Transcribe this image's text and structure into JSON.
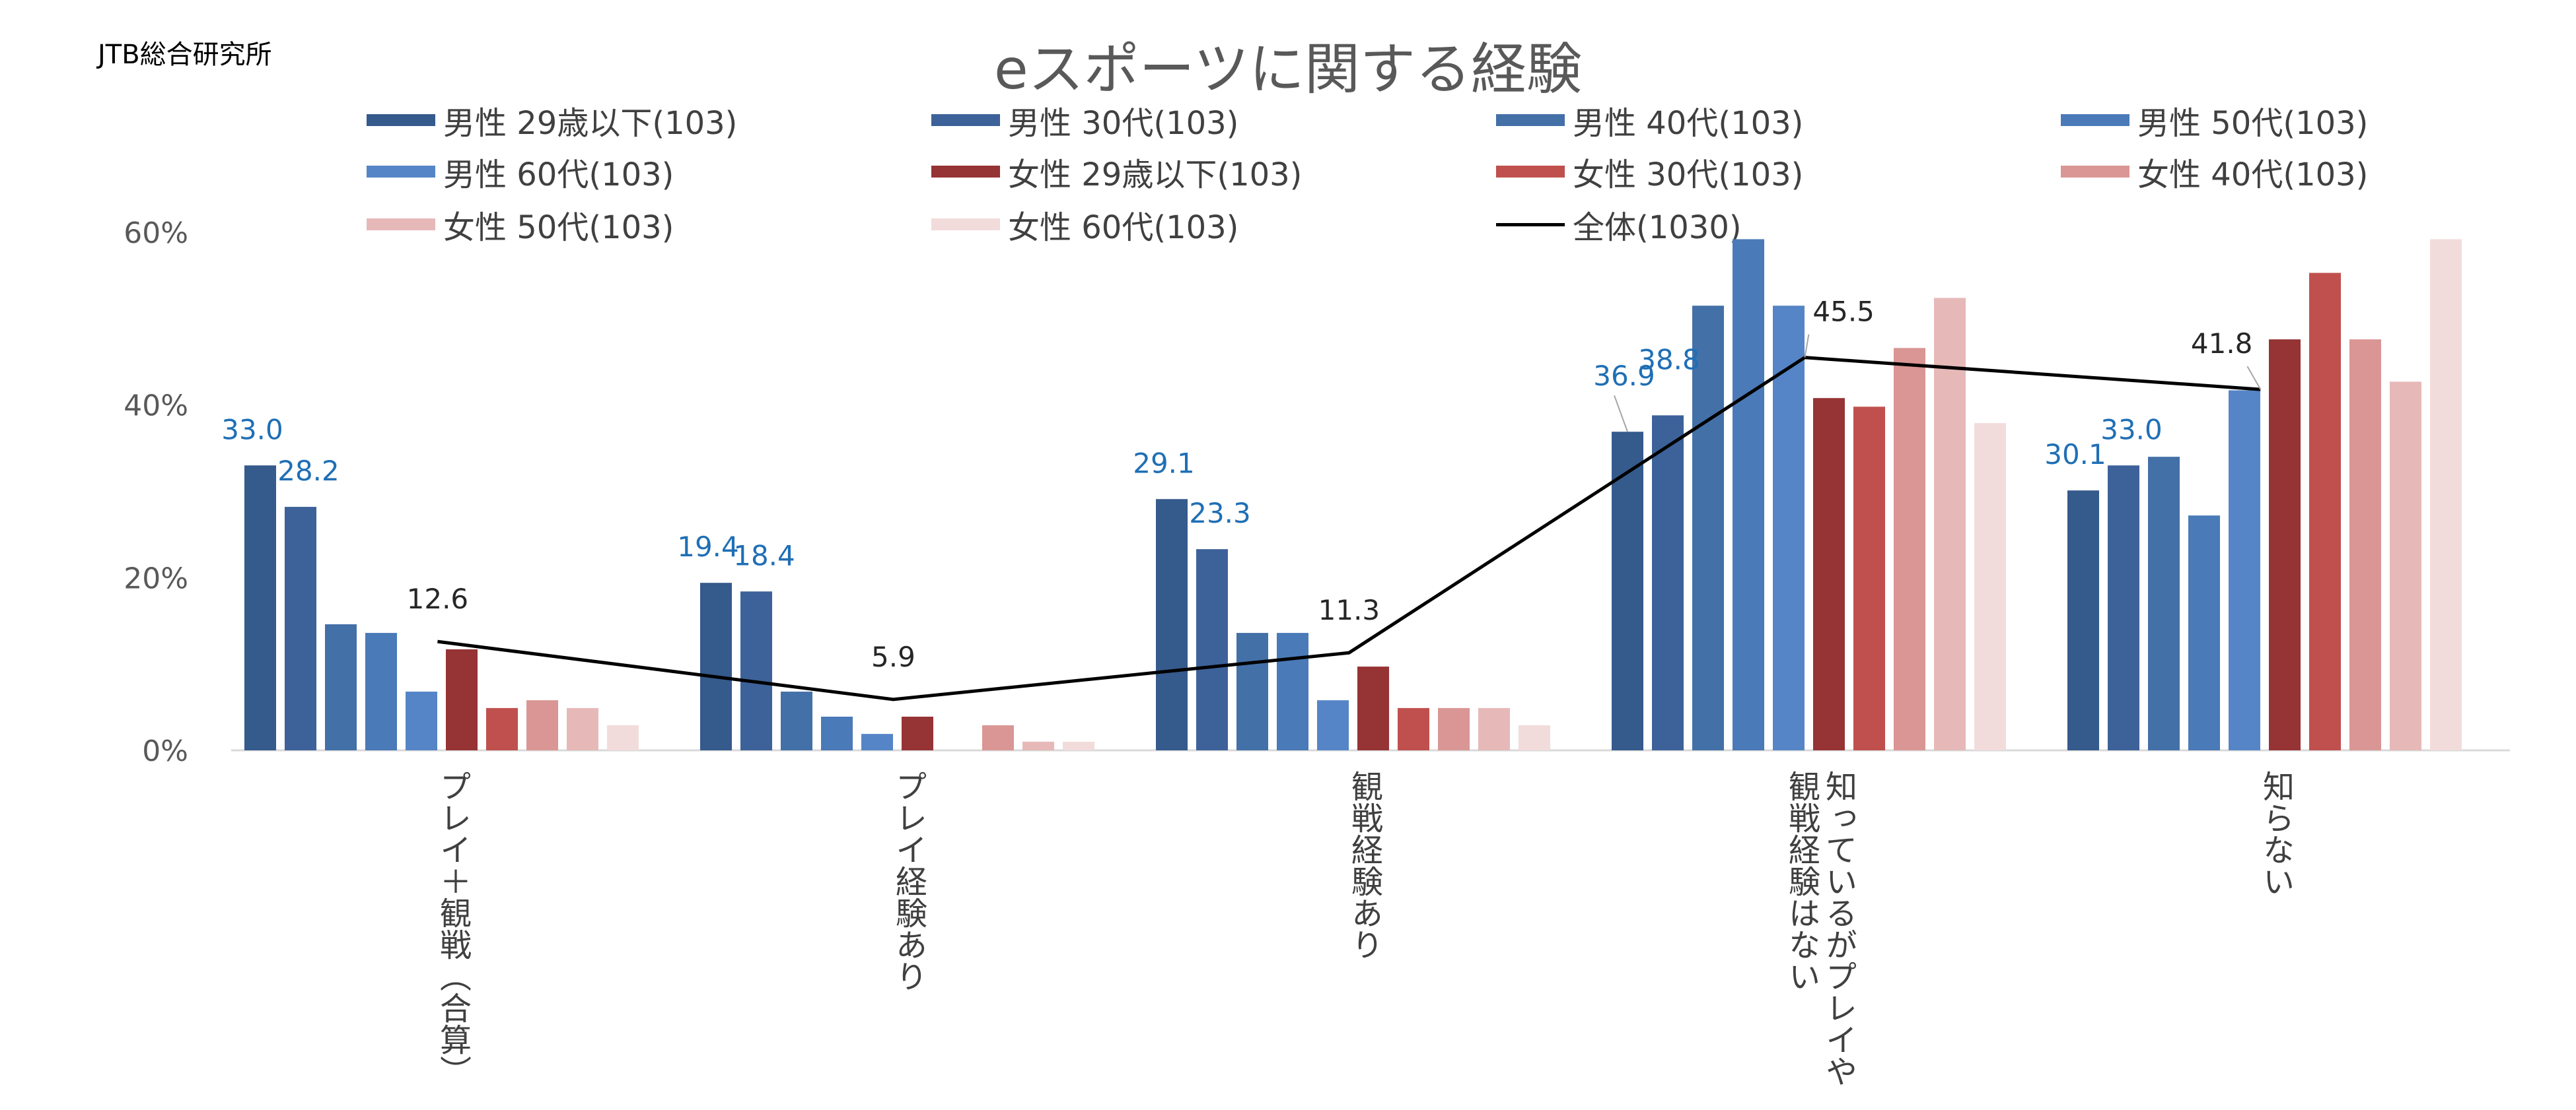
{
  "source": "JTB総合研究所",
  "chart_data": {
    "type": "bar",
    "title": "eスポーツに関する経験",
    "categories": [
      "プレイ＋観戦（合算）",
      "プレイ経験あり",
      "観戦経験あり",
      "知っているがプレイや観戦経験はない",
      "知らない"
    ],
    "category_lines": [
      [
        "プレイ＋観戦（合算）"
      ],
      [
        "プレイ経験あり"
      ],
      [
        "観戦経験あり"
      ],
      [
        "知っているがプレイや",
        "観戦経験はない"
      ],
      [
        "知らない"
      ]
    ],
    "y_ticks": [
      "0%",
      "20%",
      "40%",
      "60%"
    ],
    "ylim": [
      0,
      60
    ],
    "grid": false,
    "series": [
      {
        "name": "男性 29歳以下(103)",
        "color": "#355a8c",
        "values": [
          33.0,
          19.4,
          29.1,
          36.9,
          30.1
        ]
      },
      {
        "name": "男性 30代(103)",
        "color": "#3c6299",
        "values": [
          28.2,
          18.4,
          23.3,
          38.8,
          33.0
        ]
      },
      {
        "name": "男性 40代(103)",
        "color": "#4470a8",
        "values": [
          14.6,
          6.8,
          13.6,
          51.5,
          34.0
        ]
      },
      {
        "name": "男性 50代(103)",
        "color": "#4a7ab8",
        "values": [
          13.6,
          3.9,
          13.6,
          59.2,
          27.2
        ]
      },
      {
        "name": "男性 60代(103)",
        "color": "#5585c6",
        "values": [
          6.8,
          1.9,
          5.8,
          51.5,
          41.7
        ]
      },
      {
        "name": "女性 29歳以下(103)",
        "color": "#963334",
        "values": [
          11.7,
          3.9,
          9.7,
          40.8,
          47.6
        ]
      },
      {
        "name": "女性 30代(103)",
        "color": "#c0504d",
        "values": [
          4.9,
          0.0,
          4.9,
          39.8,
          55.3
        ]
      },
      {
        "name": "女性 40代(103)",
        "color": "#d99694",
        "values": [
          5.8,
          2.9,
          4.9,
          46.6,
          47.6
        ]
      },
      {
        "name": "女性 50代(103)",
        "color": "#e6b9b8",
        "values": [
          4.9,
          1.0,
          4.9,
          52.4,
          42.7
        ]
      },
      {
        "name": "女性 60代(103)",
        "color": "#f2dcdb",
        "values": [
          2.9,
          1.0,
          2.9,
          37.9,
          59.2
        ]
      }
    ],
    "line_series": {
      "name": "全体(1030)",
      "color": "#000000",
      "values": [
        12.6,
        5.9,
        11.3,
        45.5,
        41.8
      ]
    },
    "data_labels": {
      "series_index_labels": [
        {
          "series": 0,
          "category": 0,
          "text": "33.0"
        },
        {
          "series": 1,
          "category": 0,
          "text": "28.2"
        },
        {
          "series": 0,
          "category": 1,
          "text": "19.4"
        },
        {
          "series": 1,
          "category": 1,
          "text": "18.4"
        },
        {
          "series": 0,
          "category": 2,
          "text": "29.1"
        },
        {
          "series": 1,
          "category": 2,
          "text": "23.3"
        },
        {
          "series": 0,
          "category": 3,
          "text": "36.9"
        },
        {
          "series": 1,
          "category": 3,
          "text": "38.8"
        },
        {
          "series": 0,
          "category": 4,
          "text": "30.1"
        },
        {
          "series": 1,
          "category": 4,
          "text": "33.0"
        }
      ],
      "line_labels": [
        "12.6",
        "5.9",
        "11.3",
        "45.5",
        "41.8"
      ],
      "bar_label_color": "#1f6fb5",
      "line_label_color": "#262626"
    },
    "legend_position": "top"
  }
}
